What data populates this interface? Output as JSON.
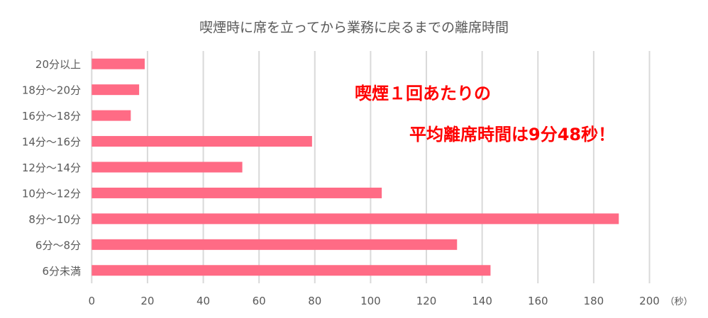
{
  "chart_data": {
    "type": "bar",
    "orientation": "horizontal",
    "title": "喫煙時に席を立ってから業務に戻るまでの離席時間",
    "categories": [
      "20分以上",
      "18分～20分",
      "16分～18分",
      "14分～16分",
      "12分～14分",
      "10分～12分",
      "8分～10分",
      "6分～8分",
      "6分未満"
    ],
    "values": [
      19,
      17,
      14,
      79,
      54,
      104,
      189,
      131,
      143
    ],
    "xlabel": "（秒）",
    "ylabel": "",
    "xlim": [
      0,
      200
    ],
    "xticks": [
      0,
      20,
      40,
      60,
      80,
      100,
      120,
      140,
      160,
      180,
      200
    ],
    "grid": true,
    "bar_color": "#ff6b85",
    "annotations": [
      "喫煙１回あたりの",
      "平均離席時間は9分48秒！"
    ]
  }
}
